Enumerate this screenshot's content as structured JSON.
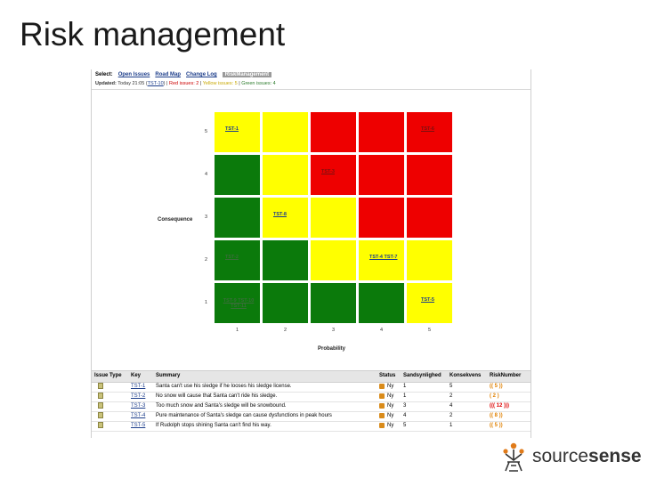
{
  "slide": {
    "title": "Risk management"
  },
  "tabs": {
    "select_label": "Select:",
    "items": [
      {
        "label": "Open Issues"
      },
      {
        "label": "Road Map"
      },
      {
        "label": "Change Log"
      },
      {
        "label": "RiskManagement"
      }
    ],
    "active": "RiskManagement"
  },
  "updated": {
    "label": "Updated:",
    "time": "Today 21:05",
    "key": "TST-10",
    "red": "Red issues: 2",
    "yellow": "Yellow issues: 5",
    "green": "Green issues: 4",
    "sep": "|"
  },
  "matrix": {
    "y_label": "Consequence",
    "x_label": "Probability",
    "y_ticks": [
      "5",
      "4",
      "3",
      "2",
      "1"
    ],
    "x_ticks": [
      "1",
      "2",
      "3",
      "4",
      "5"
    ],
    "colors": {
      "green": "#0b7a0b",
      "yellow": "#ffff00",
      "red": "#ee0000"
    },
    "rows": [
      {
        "consequence": "5",
        "cells": [
          {
            "color": "yellow",
            "text": "TST-1"
          },
          {
            "color": "yellow",
            "text": ""
          },
          {
            "color": "red",
            "text": ""
          },
          {
            "color": "red",
            "text": ""
          },
          {
            "color": "red",
            "text": "TST-6"
          }
        ]
      },
      {
        "consequence": "4",
        "cells": [
          {
            "color": "green",
            "text": ""
          },
          {
            "color": "yellow",
            "text": ""
          },
          {
            "color": "red",
            "text": "TST-3"
          },
          {
            "color": "red",
            "text": ""
          },
          {
            "color": "red",
            "text": ""
          }
        ]
      },
      {
        "consequence": "3",
        "cells": [
          {
            "color": "green",
            "text": ""
          },
          {
            "color": "yellow",
            "text": "TST-8"
          },
          {
            "color": "yellow",
            "text": ""
          },
          {
            "color": "red",
            "text": ""
          },
          {
            "color": "red",
            "text": ""
          }
        ]
      },
      {
        "consequence": "2",
        "cells": [
          {
            "color": "green",
            "text": "TST-2"
          },
          {
            "color": "green",
            "text": ""
          },
          {
            "color": "yellow",
            "text": ""
          },
          {
            "color": "yellow",
            "text": "TST-4 TST-7"
          },
          {
            "color": "yellow",
            "text": ""
          }
        ]
      },
      {
        "consequence": "1",
        "cells": [
          {
            "color": "green",
            "text": "TST-9 TST-10 TST-11"
          },
          {
            "color": "green",
            "text": ""
          },
          {
            "color": "green",
            "text": ""
          },
          {
            "color": "green",
            "text": ""
          },
          {
            "color": "yellow",
            "text": "TST-5"
          }
        ]
      }
    ]
  },
  "table": {
    "headers": [
      "Issue Type",
      "Key",
      "Summary",
      "Status",
      "Sandsynlighed",
      "Konsekvens",
      "RiskNumber"
    ],
    "rows": [
      {
        "key": "TST-1",
        "summary": "Santa can't use his sledge if he looses his sledge license.",
        "status": "Ny",
        "prob": "1",
        "cons": "5",
        "risk": "(( 5 ))",
        "risk_color": "orange"
      },
      {
        "key": "TST-2",
        "summary": "No snow will cause that Santa can't ride his sledge.",
        "status": "Ny",
        "prob": "1",
        "cons": "2",
        "risk": "( 2 )",
        "risk_color": "orange"
      },
      {
        "key": "TST-3",
        "summary": "Too much snow and Santa's sledge will be snowbound.",
        "status": "Ny",
        "prob": "3",
        "cons": "4",
        "risk": "((( 12 )))",
        "risk_color": "red"
      },
      {
        "key": "TST-4",
        "summary": "Pure maintenance of Santa's sledge can cause dysfunctions in peak hours",
        "status": "Ny",
        "prob": "4",
        "cons": "2",
        "risk": "(( 8 ))",
        "risk_color": "orange"
      },
      {
        "key": "TST-5",
        "summary": "If Rudolph stops shining Santa can't find his way.",
        "status": "Ny",
        "prob": "5",
        "cons": "1",
        "risk": "(( 5 ))",
        "risk_color": "orange"
      }
    ]
  },
  "logo": {
    "text_light": "source",
    "text_bold": "sense"
  }
}
